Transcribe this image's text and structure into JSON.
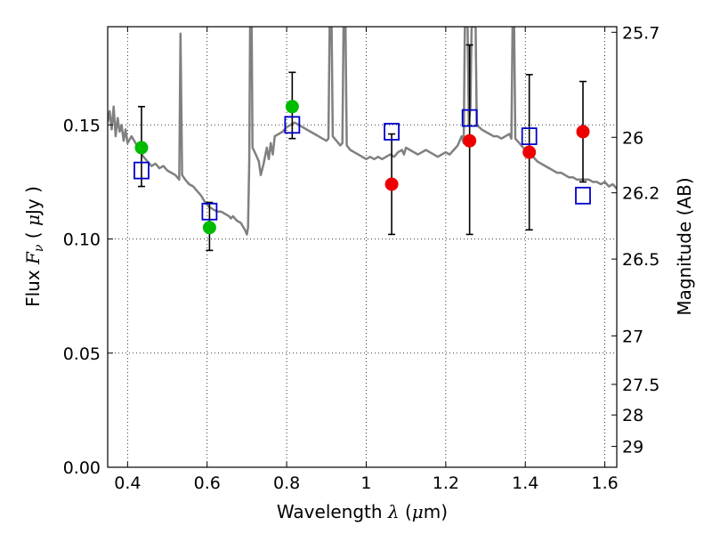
{
  "chart_data": {
    "type": "scatter",
    "title": "",
    "xlabel": "Wavelength  λ (μm)",
    "ylabel": "Flux  F_ν  ( μJy )",
    "y2label": "Magnitude (AB)",
    "xlim": [
      0.35,
      1.63
    ],
    "ylim": [
      0.0,
      0.193
    ],
    "grid": true,
    "x_ticks": [
      {
        "value": 0.4,
        "label": "0.4"
      },
      {
        "value": 0.6,
        "label": "0.6"
      },
      {
        "value": 0.8,
        "label": "0.8"
      },
      {
        "value": 1.0,
        "label": "1"
      },
      {
        "value": 1.2,
        "label": "1.2"
      },
      {
        "value": 1.4,
        "label": "1.4"
      },
      {
        "value": 1.6,
        "label": "1.6"
      }
    ],
    "y_ticks": [
      {
        "value": 0.0,
        "label": "0.00"
      },
      {
        "value": 0.05,
        "label": "0.05"
      },
      {
        "value": 0.1,
        "label": "0.10"
      },
      {
        "value": 0.15,
        "label": "0.15"
      }
    ],
    "mag_ticks": [
      {
        "mag": 25.7,
        "label": "25.7"
      },
      {
        "mag": 26,
        "label": "26"
      },
      {
        "mag": 26.2,
        "label": "26.2"
      },
      {
        "mag": 26.5,
        "label": "26.5"
      },
      {
        "mag": 27,
        "label": "27"
      },
      {
        "mag": 27.5,
        "label": "27.5"
      },
      {
        "mag": 28,
        "label": "28"
      },
      {
        "mag": 29,
        "label": "29"
      }
    ],
    "series": [
      {
        "marker": "circle",
        "color": "#00bb00",
        "points": [
          {
            "x": 0.435,
            "y": 0.14,
            "yerr_low": 0.017,
            "yerr_high": 0.018
          },
          {
            "x": 0.606,
            "y": 0.105,
            "yerr_low": 0.01,
            "yerr_high": 0.011
          },
          {
            "x": 0.814,
            "y": 0.158,
            "yerr_low": 0.014,
            "yerr_high": 0.015
          }
        ]
      },
      {
        "marker": "circle",
        "color": "#ee0000",
        "points": [
          {
            "x": 1.064,
            "y": 0.124,
            "yerr_low": 0.022,
            "yerr_high": 0.022
          },
          {
            "x": 1.26,
            "y": 0.143,
            "yerr_low": 0.041,
            "yerr_high": 0.042
          },
          {
            "x": 1.41,
            "y": 0.138,
            "yerr_low": 0.034,
            "yerr_high": 0.034
          },
          {
            "x": 1.545,
            "y": 0.147,
            "yerr_low": 0.022,
            "yerr_high": 0.022
          }
        ]
      },
      {
        "marker": "square",
        "color": "#0000cc",
        "points": [
          {
            "x": 0.435,
            "y": 0.13
          },
          {
            "x": 0.606,
            "y": 0.112
          },
          {
            "x": 0.814,
            "y": 0.15
          },
          {
            "x": 1.064,
            "y": 0.147
          },
          {
            "x": 1.26,
            "y": 0.153
          },
          {
            "x": 1.41,
            "y": 0.145
          },
          {
            "x": 1.545,
            "y": 0.119
          }
        ]
      },
      {
        "type": "line",
        "color": "#808080",
        "points": [
          [
            0.35,
            0.151
          ],
          [
            0.355,
            0.156
          ],
          [
            0.36,
            0.148
          ],
          [
            0.365,
            0.158
          ],
          [
            0.37,
            0.145
          ],
          [
            0.375,
            0.153
          ],
          [
            0.38,
            0.147
          ],
          [
            0.385,
            0.15
          ],
          [
            0.39,
            0.143
          ],
          [
            0.395,
            0.148
          ],
          [
            0.4,
            0.142
          ],
          [
            0.41,
            0.145
          ],
          [
            0.42,
            0.142
          ],
          [
            0.43,
            0.139
          ],
          [
            0.44,
            0.136
          ],
          [
            0.45,
            0.134
          ],
          [
            0.46,
            0.132
          ],
          [
            0.47,
            0.133
          ],
          [
            0.48,
            0.131
          ],
          [
            0.49,
            0.132
          ],
          [
            0.5,
            0.13
          ],
          [
            0.51,
            0.129
          ],
          [
            0.52,
            0.128
          ],
          [
            0.53,
            0.126
          ],
          [
            0.533,
            0.19
          ],
          [
            0.537,
            0.128
          ],
          [
            0.545,
            0.126
          ],
          [
            0.555,
            0.124
          ],
          [
            0.565,
            0.123
          ],
          [
            0.575,
            0.121
          ],
          [
            0.585,
            0.119
          ],
          [
            0.595,
            0.116
          ],
          [
            0.605,
            0.114
          ],
          [
            0.615,
            0.113
          ],
          [
            0.625,
            0.112
          ],
          [
            0.635,
            0.112
          ],
          [
            0.645,
            0.111
          ],
          [
            0.655,
            0.11
          ],
          [
            0.66,
            0.109
          ],
          [
            0.665,
            0.11
          ],
          [
            0.675,
            0.108
          ],
          [
            0.685,
            0.107
          ],
          [
            0.695,
            0.104
          ],
          [
            0.7,
            0.102
          ],
          [
            0.703,
            0.105
          ],
          [
            0.706,
            0.135
          ],
          [
            0.708,
            0.193
          ],
          [
            0.712,
            0.193
          ],
          [
            0.714,
            0.14
          ],
          [
            0.72,
            0.138
          ],
          [
            0.73,
            0.134
          ],
          [
            0.735,
            0.128
          ],
          [
            0.742,
            0.133
          ],
          [
            0.75,
            0.14
          ],
          [
            0.755,
            0.135
          ],
          [
            0.76,
            0.142
          ],
          [
            0.765,
            0.137
          ],
          [
            0.77,
            0.145
          ],
          [
            0.78,
            0.146
          ],
          [
            0.79,
            0.147
          ],
          [
            0.8,
            0.149
          ],
          [
            0.81,
            0.15
          ],
          [
            0.82,
            0.151
          ],
          [
            0.83,
            0.15
          ],
          [
            0.84,
            0.149
          ],
          [
            0.85,
            0.148
          ],
          [
            0.86,
            0.147
          ],
          [
            0.87,
            0.146
          ],
          [
            0.88,
            0.145
          ],
          [
            0.89,
            0.144
          ],
          [
            0.9,
            0.143
          ],
          [
            0.905,
            0.144
          ],
          [
            0.908,
            0.193
          ],
          [
            0.913,
            0.193
          ],
          [
            0.916,
            0.145
          ],
          [
            0.925,
            0.143
          ],
          [
            0.935,
            0.141
          ],
          [
            0.94,
            0.142
          ],
          [
            0.943,
            0.193
          ],
          [
            0.948,
            0.193
          ],
          [
            0.951,
            0.141
          ],
          [
            0.96,
            0.139
          ],
          [
            0.97,
            0.138
          ],
          [
            0.98,
            0.137
          ],
          [
            0.99,
            0.136
          ],
          [
            1.0,
            0.135
          ],
          [
            1.01,
            0.136
          ],
          [
            1.02,
            0.135
          ],
          [
            1.03,
            0.136
          ],
          [
            1.04,
            0.135
          ],
          [
            1.05,
            0.136
          ],
          [
            1.06,
            0.137
          ],
          [
            1.07,
            0.136
          ],
          [
            1.08,
            0.138
          ],
          [
            1.09,
            0.139
          ],
          [
            1.095,
            0.137
          ],
          [
            1.1,
            0.14
          ],
          [
            1.11,
            0.139
          ],
          [
            1.12,
            0.138
          ],
          [
            1.13,
            0.137
          ],
          [
            1.14,
            0.138
          ],
          [
            1.15,
            0.139
          ],
          [
            1.16,
            0.138
          ],
          [
            1.17,
            0.137
          ],
          [
            1.18,
            0.136
          ],
          [
            1.19,
            0.137
          ],
          [
            1.2,
            0.138
          ],
          [
            1.21,
            0.137
          ],
          [
            1.22,
            0.139
          ],
          [
            1.23,
            0.141
          ],
          [
            1.24,
            0.145
          ],
          [
            1.245,
            0.142
          ],
          [
            1.248,
            0.193
          ],
          [
            1.255,
            0.193
          ],
          [
            1.258,
            0.15
          ],
          [
            1.262,
            0.158
          ],
          [
            1.265,
            0.193
          ],
          [
            1.275,
            0.193
          ],
          [
            1.278,
            0.15
          ],
          [
            1.29,
            0.148
          ],
          [
            1.3,
            0.147
          ],
          [
            1.31,
            0.146
          ],
          [
            1.32,
            0.145
          ],
          [
            1.33,
            0.145
          ],
          [
            1.34,
            0.144
          ],
          [
            1.35,
            0.145
          ],
          [
            1.36,
            0.146
          ],
          [
            1.365,
            0.144
          ],
          [
            1.368,
            0.193
          ],
          [
            1.372,
            0.193
          ],
          [
            1.375,
            0.144
          ],
          [
            1.39,
            0.141
          ],
          [
            1.4,
            0.139
          ],
          [
            1.41,
            0.138
          ],
          [
            1.42,
            0.136
          ],
          [
            1.43,
            0.134
          ],
          [
            1.44,
            0.133
          ],
          [
            1.45,
            0.132
          ],
          [
            1.46,
            0.131
          ],
          [
            1.47,
            0.13
          ],
          [
            1.48,
            0.129
          ],
          [
            1.49,
            0.129
          ],
          [
            1.5,
            0.128
          ],
          [
            1.51,
            0.127
          ],
          [
            1.52,
            0.127
          ],
          [
            1.53,
            0.126
          ],
          [
            1.54,
            0.126
          ],
          [
            1.55,
            0.126
          ],
          [
            1.56,
            0.126
          ],
          [
            1.57,
            0.125
          ],
          [
            1.58,
            0.125
          ],
          [
            1.59,
            0.124
          ],
          [
            1.6,
            0.125
          ],
          [
            1.61,
            0.123
          ],
          [
            1.62,
            0.124
          ],
          [
            1.63,
            0.122
          ]
        ]
      }
    ]
  }
}
